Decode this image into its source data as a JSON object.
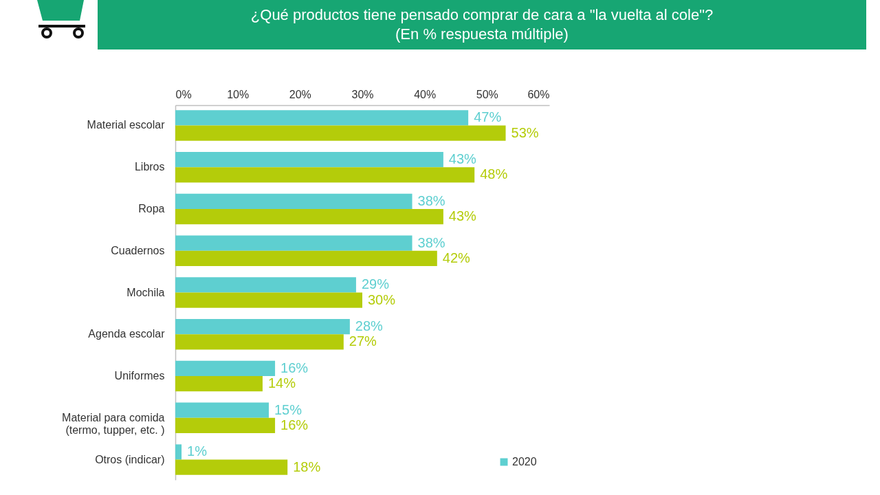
{
  "chart_data": {
    "type": "bar",
    "orientation": "horizontal",
    "title": "¿Qué productos tiene pensado comprar de cara a \"la vuelta al cole\"?",
    "subtitle": "(En % respuesta múltiple)",
    "categories": [
      "Material escolar",
      "Libros",
      "Ropa",
      "Cuadernos",
      "Mochila",
      "Agenda escolar",
      "Uniformes",
      "Material para comida\n(termo, tupper, etc. )",
      "Otros (indicar)"
    ],
    "series": [
      {
        "name": "2020",
        "color": "#5ecfd0",
        "values": [
          47,
          43,
          38,
          38,
          29,
          28,
          16,
          15,
          1
        ],
        "value_labels": [
          "47%",
          "43%",
          "38%",
          "38%",
          "29%",
          "28%",
          "16%",
          "15%",
          "1%"
        ]
      },
      {
        "color": "#b4cc0a",
        "values": [
          53,
          48,
          43,
          42,
          30,
          27,
          14,
          16,
          18
        ],
        "value_labels": [
          "53%",
          "48%",
          "43%",
          "42%",
          "30%",
          "27%",
          "14%",
          "16%",
          "18%"
        ]
      }
    ],
    "xlim": [
      0,
      60
    ],
    "xticks": [
      {
        "value": 0,
        "label": "0%"
      },
      {
        "value": 10,
        "label": "10%"
      },
      {
        "value": 20,
        "label": "20%"
      },
      {
        "value": 30,
        "label": "30%"
      },
      {
        "value": 40,
        "label": "40%"
      },
      {
        "value": 50,
        "label": "50%"
      },
      {
        "value": 60,
        "label": "60%"
      }
    ],
    "legend": "bottom right",
    "grid": false
  }
}
